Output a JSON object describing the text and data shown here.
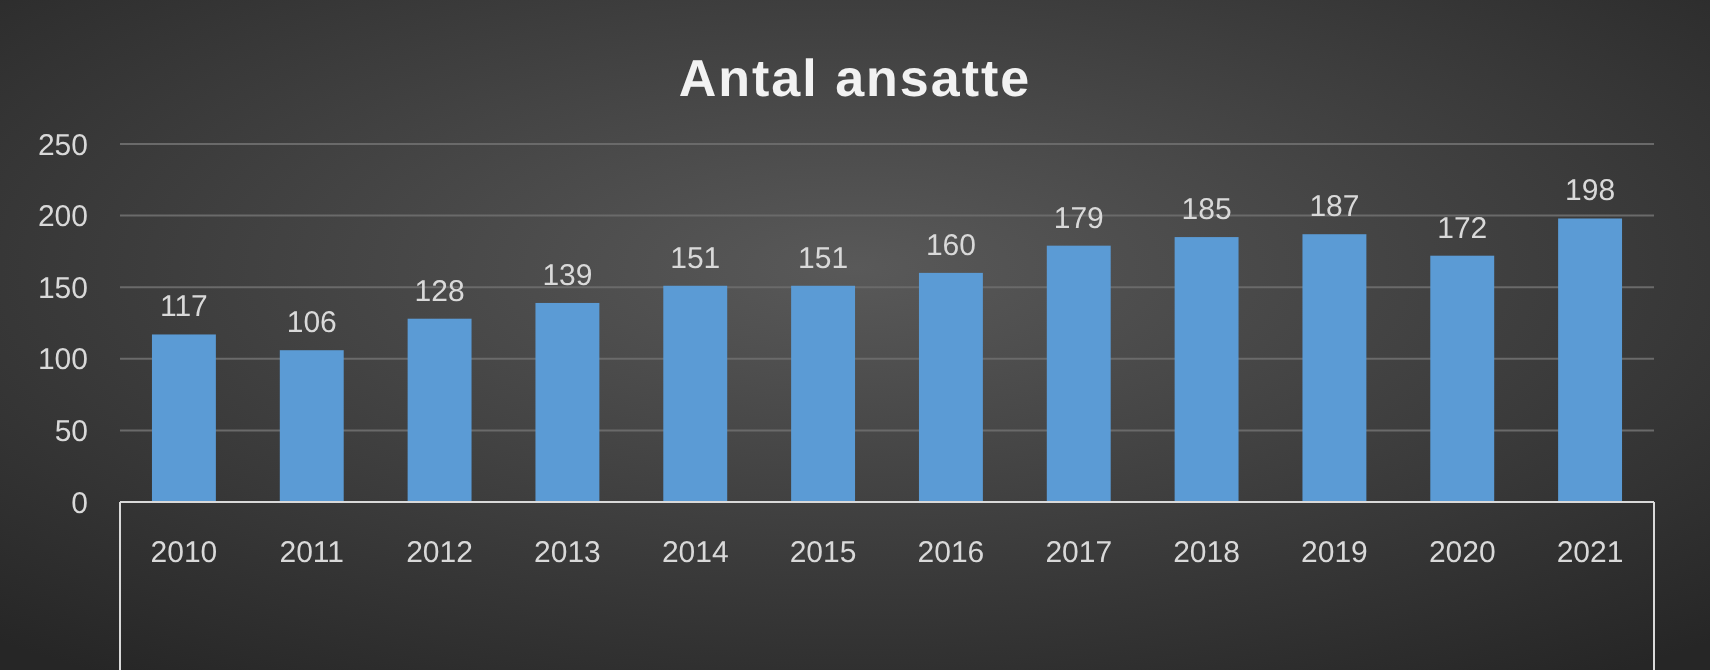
{
  "chart_data": {
    "type": "bar",
    "title": "Antal ansatte",
    "categories": [
      "2010",
      "2011",
      "2012",
      "2013",
      "2014",
      "2015",
      "2016",
      "2017",
      "2018",
      "2019",
      "2020",
      "2021"
    ],
    "values": [
      117,
      106,
      128,
      139,
      151,
      151,
      160,
      179,
      185,
      187,
      172,
      198
    ],
    "color": "#5b9bd5",
    "ylim": [
      0,
      250
    ],
    "yticks": [
      0,
      50,
      100,
      150,
      200,
      250
    ],
    "grid": "y",
    "data_labels": true
  }
}
